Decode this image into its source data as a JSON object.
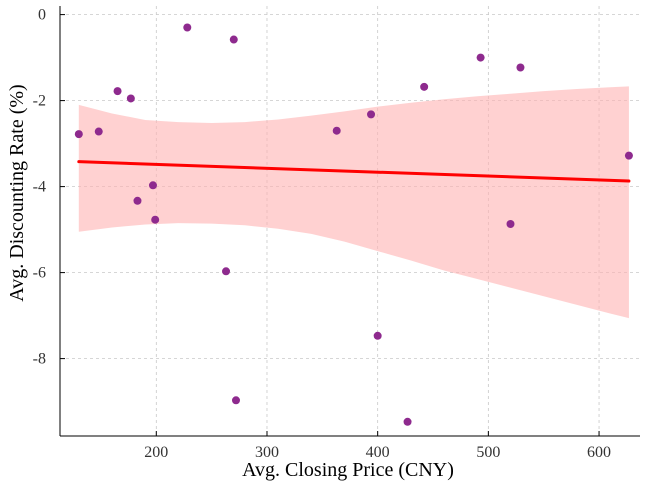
{
  "chart_data": {
    "type": "scatter",
    "title": "",
    "xlabel": "Avg. Closing Price (CNY)",
    "ylabel": "Avg. Discounting Rate (%)",
    "xlim": [
      113,
      637
    ],
    "ylim": [
      -9.8,
      0.2
    ],
    "xticks": [
      200,
      300,
      400,
      500,
      600
    ],
    "yticks": [
      0,
      -2,
      -4,
      -6,
      -8
    ],
    "grid": true,
    "points": [
      {
        "x": 130,
        "y": -2.78
      },
      {
        "x": 148,
        "y": -2.72
      },
      {
        "x": 165,
        "y": -1.78
      },
      {
        "x": 177,
        "y": -1.95
      },
      {
        "x": 183,
        "y": -4.33
      },
      {
        "x": 197,
        "y": -3.97
      },
      {
        "x": 199,
        "y": -4.77
      },
      {
        "x": 228,
        "y": -0.3
      },
      {
        "x": 263,
        "y": -5.97
      },
      {
        "x": 270,
        "y": -0.58
      },
      {
        "x": 272,
        "y": -8.97
      },
      {
        "x": 363,
        "y": -2.7
      },
      {
        "x": 394,
        "y": -2.32
      },
      {
        "x": 400,
        "y": -7.47
      },
      {
        "x": 427,
        "y": -9.47
      },
      {
        "x": 442,
        "y": -1.68
      },
      {
        "x": 493,
        "y": -1.0
      },
      {
        "x": 520,
        "y": -4.87
      },
      {
        "x": 529,
        "y": -1.23
      },
      {
        "x": 627,
        "y": -3.28
      }
    ],
    "regression": {
      "x": [
        130,
        627
      ],
      "y": [
        -3.42,
        -3.87
      ]
    },
    "confidence_band": {
      "x": [
        130,
        160,
        190,
        220,
        250,
        280,
        310,
        340,
        370,
        400,
        430,
        460,
        490,
        520,
        550,
        580,
        610,
        627
      ],
      "upper": [
        -2.1,
        -2.3,
        -2.45,
        -2.5,
        -2.52,
        -2.5,
        -2.44,
        -2.35,
        -2.25,
        -2.14,
        -2.05,
        -1.97,
        -1.9,
        -1.84,
        -1.78,
        -1.73,
        -1.69,
        -1.67
      ],
      "lower": [
        -5.05,
        -4.95,
        -4.88,
        -4.85,
        -4.86,
        -4.9,
        -4.98,
        -5.1,
        -5.28,
        -5.5,
        -5.72,
        -5.95,
        -6.15,
        -6.35,
        -6.55,
        -6.75,
        -6.95,
        -7.06
      ]
    },
    "colors": {
      "point": "#8e2a8e",
      "line": "#ff0000",
      "band": "#ffb3b3"
    }
  }
}
